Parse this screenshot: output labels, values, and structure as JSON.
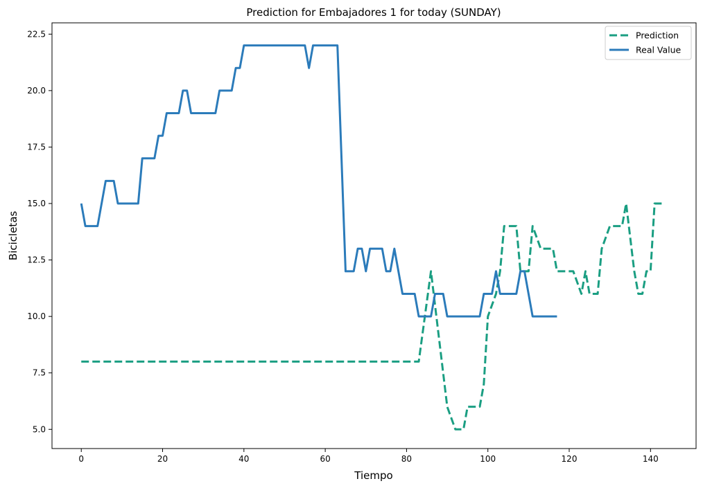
{
  "chart_data": {
    "type": "line",
    "title": "Prediction for Embajadores 1 for today (SUNDAY)",
    "xlabel": "Tiempo",
    "ylabel": "Bicicletas",
    "xlim": [
      -7.2,
      151.2
    ],
    "ylim": [
      4.15,
      23.0
    ],
    "xticks": [
      0,
      20,
      40,
      60,
      80,
      100,
      120,
      140
    ],
    "yticks": [
      5.0,
      7.5,
      10.0,
      12.5,
      15.0,
      17.5,
      20.0,
      22.5
    ],
    "xtick_labels": [
      "0",
      "20",
      "40",
      "60",
      "80",
      "100",
      "120",
      "140"
    ],
    "ytick_labels": [
      "5.0",
      "7.5",
      "10.0",
      "12.5",
      "15.0",
      "17.5",
      "20.0",
      "22.5"
    ],
    "grid": false,
    "legend_position": "top-right",
    "series": [
      {
        "name": "Prediction",
        "color": "#1a9e82",
        "style": "dashed",
        "points": [
          [
            0,
            8
          ],
          [
            83,
            8
          ],
          [
            86,
            12
          ],
          [
            90,
            6
          ],
          [
            92,
            5
          ],
          [
            94,
            5
          ],
          [
            95,
            6
          ],
          [
            98,
            6
          ],
          [
            99,
            7
          ],
          [
            100,
            10
          ],
          [
            102,
            11
          ],
          [
            103,
            12
          ],
          [
            104,
            14
          ],
          [
            107,
            14
          ],
          [
            108,
            12
          ],
          [
            110,
            12
          ],
          [
            111,
            14
          ],
          [
            113,
            13
          ],
          [
            116,
            13
          ],
          [
            117,
            12
          ],
          [
            121,
            12
          ],
          [
            123,
            11
          ],
          [
            124,
            12
          ],
          [
            125,
            11
          ],
          [
            127,
            11
          ],
          [
            128,
            13
          ],
          [
            130,
            14
          ],
          [
            133,
            14
          ],
          [
            134,
            15
          ],
          [
            136,
            12
          ],
          [
            137,
            11
          ],
          [
            138,
            11
          ],
          [
            139,
            12
          ],
          [
            140,
            12
          ],
          [
            141,
            15
          ],
          [
            143,
            15
          ]
        ]
      },
      {
        "name": "Real Value",
        "color": "#2b7bba",
        "style": "solid",
        "points": [
          [
            0,
            15
          ],
          [
            1,
            14
          ],
          [
            4,
            14
          ],
          [
            6,
            16
          ],
          [
            8,
            16
          ],
          [
            9,
            15
          ],
          [
            14,
            15
          ],
          [
            15,
            17
          ],
          [
            18,
            17
          ],
          [
            19,
            18
          ],
          [
            20,
            18
          ],
          [
            21,
            19
          ],
          [
            24,
            19
          ],
          [
            25,
            20
          ],
          [
            26,
            20
          ],
          [
            27,
            19
          ],
          [
            33,
            19
          ],
          [
            34,
            20
          ],
          [
            37,
            20
          ],
          [
            38,
            21
          ],
          [
            39,
            21
          ],
          [
            40,
            22
          ],
          [
            55,
            22
          ],
          [
            56,
            21
          ],
          [
            57,
            22
          ],
          [
            63,
            22
          ],
          [
            65,
            12
          ],
          [
            67,
            12
          ],
          [
            68,
            13
          ],
          [
            69,
            13
          ],
          [
            70,
            12
          ],
          [
            71,
            13
          ],
          [
            74,
            13
          ],
          [
            75,
            12
          ],
          [
            76,
            12
          ],
          [
            77,
            13
          ],
          [
            79,
            11
          ],
          [
            82,
            11
          ],
          [
            83,
            10
          ],
          [
            86,
            10
          ],
          [
            87,
            11
          ],
          [
            89,
            11
          ],
          [
            90,
            10
          ],
          [
            98,
            10
          ],
          [
            99,
            11
          ],
          [
            101,
            11
          ],
          [
            102,
            12
          ],
          [
            103,
            11
          ],
          [
            107,
            11
          ],
          [
            108,
            12
          ],
          [
            109,
            12
          ],
          [
            111,
            10
          ],
          [
            117,
            10
          ]
        ]
      }
    ]
  }
}
